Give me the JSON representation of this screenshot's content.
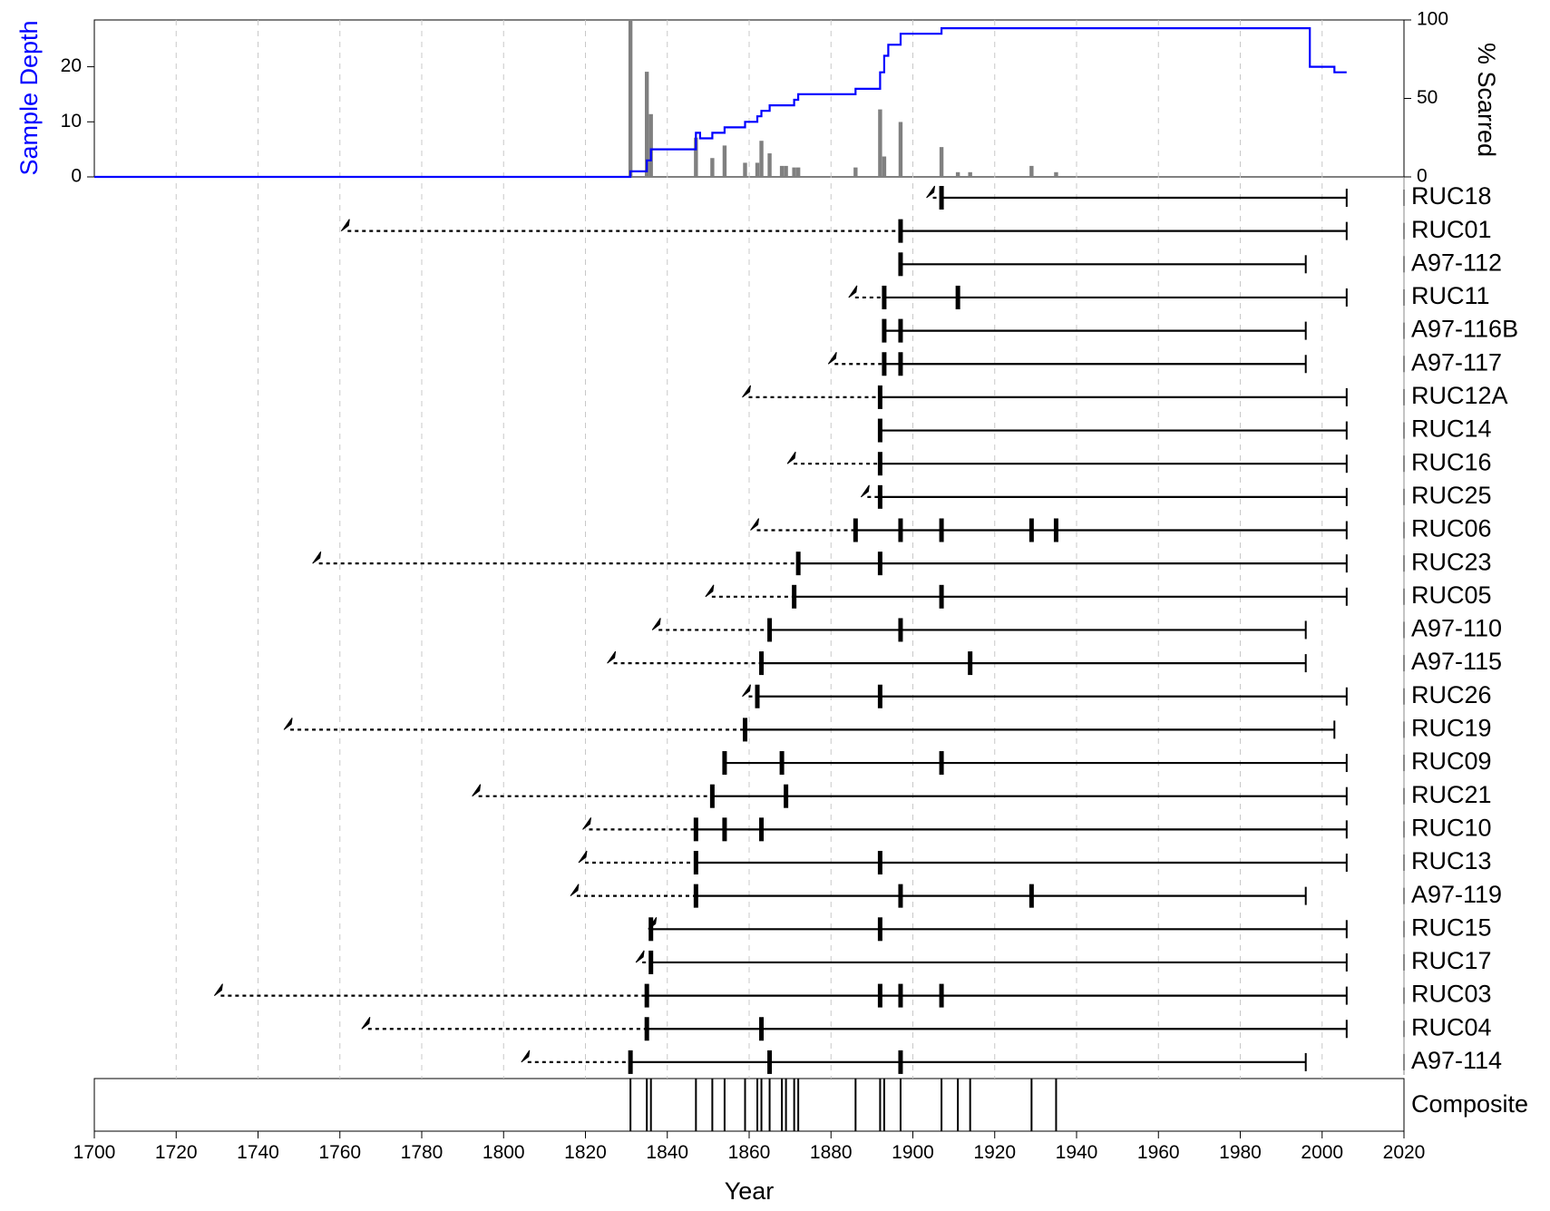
{
  "chart_data": {
    "type": "fire-history",
    "x_axis": {
      "label": "Year",
      "range": [
        1700,
        2020
      ],
      "ticks": [
        1700,
        1720,
        1740,
        1760,
        1780,
        1800,
        1820,
        1840,
        1860,
        1880,
        1900,
        1920,
        1940,
        1960,
        1980,
        2000,
        2020
      ]
    },
    "sample_depth_axis": {
      "label": "Sample Depth",
      "ticks": [
        0,
        10,
        20
      ],
      "range": [
        0,
        28.5
      ],
      "color": "#0000ff"
    },
    "percent_scarred_axis": {
      "label": "% Scarred",
      "ticks": [
        0,
        50,
        100
      ],
      "range": [
        0,
        100
      ],
      "bar_color": "#808080"
    },
    "sample_depth_series": [
      [
        1700,
        0
      ],
      [
        1831,
        0
      ],
      [
        1831,
        1
      ],
      [
        1835,
        1
      ],
      [
        1835,
        3
      ],
      [
        1836,
        3
      ],
      [
        1836,
        5
      ],
      [
        1847,
        5
      ],
      [
        1847,
        8
      ],
      [
        1848,
        8
      ],
      [
        1848,
        7
      ],
      [
        1851,
        7
      ],
      [
        1851,
        8
      ],
      [
        1854,
        8
      ],
      [
        1854,
        9
      ],
      [
        1859,
        9
      ],
      [
        1859,
        10
      ],
      [
        1862,
        10
      ],
      [
        1862,
        11
      ],
      [
        1863,
        11
      ],
      [
        1863,
        12
      ],
      [
        1865,
        12
      ],
      [
        1865,
        13
      ],
      [
        1871,
        13
      ],
      [
        1871,
        14
      ],
      [
        1872,
        14
      ],
      [
        1872,
        15
      ],
      [
        1886,
        15
      ],
      [
        1886,
        16
      ],
      [
        1892,
        16
      ],
      [
        1892,
        19
      ],
      [
        1893,
        19
      ],
      [
        1893,
        22
      ],
      [
        1894,
        22
      ],
      [
        1894,
        24
      ],
      [
        1897,
        24
      ],
      [
        1897,
        26
      ],
      [
        1907,
        26
      ],
      [
        1907,
        27
      ],
      [
        1997,
        27
      ],
      [
        1997,
        20
      ],
      [
        2003,
        20
      ],
      [
        2003,
        19
      ],
      [
        2006,
        19
      ]
    ],
    "percent_scarred": [
      {
        "year": 1831,
        "value": 100
      },
      {
        "year": 1835,
        "value": 67
      },
      {
        "year": 1836,
        "value": 40
      },
      {
        "year": 1847,
        "value": 25
      },
      {
        "year": 1851,
        "value": 12
      },
      {
        "year": 1854,
        "value": 20
      },
      {
        "year": 1859,
        "value": 9
      },
      {
        "year": 1862,
        "value": 9
      },
      {
        "year": 1863,
        "value": 23
      },
      {
        "year": 1865,
        "value": 15
      },
      {
        "year": 1868,
        "value": 7
      },
      {
        "year": 1869,
        "value": 7
      },
      {
        "year": 1871,
        "value": 6
      },
      {
        "year": 1872,
        "value": 6
      },
      {
        "year": 1886,
        "value": 6
      },
      {
        "year": 1892,
        "value": 43
      },
      {
        "year": 1893,
        "value": 13
      },
      {
        "year": 1897,
        "value": 35
      },
      {
        "year": 1907,
        "value": 19
      },
      {
        "year": 1911,
        "value": 3
      },
      {
        "year": 1914,
        "value": 3
      },
      {
        "year": 1929,
        "value": 7
      },
      {
        "year": 1935,
        "value": 3
      }
    ],
    "series": [
      {
        "name": "RUC18",
        "pith": 1904,
        "first": 1907,
        "last": 2006,
        "last_type": "bark",
        "events": [
          1907
        ]
      },
      {
        "name": "RUC01",
        "pith": 1761,
        "first": 1897,
        "last": 2006,
        "last_type": "bark",
        "events": [
          1897
        ]
      },
      {
        "name": "A97-112",
        "pith": null,
        "first": 1897,
        "last": 1996,
        "last_type": "bark",
        "events": [
          1897
        ]
      },
      {
        "name": "RUC11",
        "pith": 1885,
        "first": 1893,
        "last": 2006,
        "last_type": "bark",
        "events": [
          1893,
          1911
        ]
      },
      {
        "name": "A97-116B",
        "pith": null,
        "first": 1893,
        "last": 1996,
        "last_type": "bark",
        "events": [
          1893,
          1897
        ]
      },
      {
        "name": "A97-117",
        "pith": 1880,
        "first": 1893,
        "last": 1996,
        "last_type": "bark",
        "events": [
          1893,
          1897
        ]
      },
      {
        "name": "RUC12A",
        "pith": 1859,
        "first": 1892,
        "last": 2006,
        "last_type": "bark",
        "events": [
          1892
        ]
      },
      {
        "name": "RUC14",
        "pith": null,
        "first": 1892,
        "last": 2006,
        "last_type": "bark",
        "events": [
          1892
        ]
      },
      {
        "name": "RUC16",
        "pith": 1870,
        "first": 1892,
        "last": 2006,
        "last_type": "bark",
        "events": [
          1892
        ]
      },
      {
        "name": "RUC25",
        "pith": 1888,
        "first": 1892,
        "last": 2006,
        "last_type": "bark",
        "events": [
          1892
        ]
      },
      {
        "name": "RUC06",
        "pith": 1861,
        "first": 1886,
        "last": 2006,
        "last_type": "bark",
        "events": [
          1886,
          1897,
          1907,
          1929,
          1935
        ]
      },
      {
        "name": "RUC23",
        "pith": 1754,
        "first": 1872,
        "last": 2006,
        "last_type": "bark",
        "events": [
          1872,
          1892
        ]
      },
      {
        "name": "RUC05",
        "pith": 1850,
        "first": 1871,
        "last": 2006,
        "last_type": "bark",
        "events": [
          1871,
          1907
        ]
      },
      {
        "name": "A97-110",
        "pith": 1837,
        "first": 1865,
        "last": 1996,
        "last_type": "bark",
        "events": [
          1865,
          1897
        ]
      },
      {
        "name": "A97-115",
        "pith": 1826,
        "first": 1863,
        "last": 1996,
        "last_type": "bark",
        "events": [
          1863,
          1914
        ]
      },
      {
        "name": "RUC26",
        "pith": 1859,
        "first": 1862,
        "last": 2006,
        "last_type": "bark",
        "events": [
          1862,
          1892
        ]
      },
      {
        "name": "RUC19",
        "pith": 1747,
        "first": 1859,
        "last": 2003,
        "last_type": "bark",
        "events": [
          1859
        ]
      },
      {
        "name": "RUC09",
        "pith": null,
        "first": 1854,
        "last": 2006,
        "last_type": "bark",
        "events": [
          1854,
          1868,
          1907
        ]
      },
      {
        "name": "RUC21",
        "pith": 1793,
        "first": 1851,
        "last": 2006,
        "last_type": "bark",
        "events": [
          1851,
          1869
        ]
      },
      {
        "name": "RUC10",
        "pith": 1820,
        "first": 1847,
        "last": 2006,
        "last_type": "bark",
        "events": [
          1847,
          1854,
          1863
        ]
      },
      {
        "name": "RUC13",
        "pith": 1819,
        "first": 1847,
        "last": 2006,
        "last_type": "bark",
        "events": [
          1847,
          1892
        ]
      },
      {
        "name": "A97-119",
        "pith": 1817,
        "first": 1847,
        "last": 1996,
        "last_type": "bark",
        "events": [
          1847,
          1897,
          1929
        ]
      },
      {
        "name": "RUC15",
        "pith": 1836,
        "first": 1836,
        "last": 2006,
        "last_type": "bark",
        "events": [
          1836,
          1892
        ]
      },
      {
        "name": "RUC17",
        "pith": 1833,
        "first": 1836,
        "last": 2006,
        "last_type": "bark",
        "events": [
          1836
        ]
      },
      {
        "name": "RUC03",
        "pith": 1730,
        "first": 1835,
        "last": 2006,
        "last_type": "bark",
        "events": [
          1835,
          1892,
          1897,
          1907
        ]
      },
      {
        "name": "RUC04",
        "pith": 1766,
        "first": 1835,
        "last": 2006,
        "last_type": "bark",
        "events": [
          1835,
          1863
        ]
      },
      {
        "name": "A97-114",
        "pith": 1805,
        "first": 1831,
        "last": 1996,
        "last_type": "bark",
        "events": [
          1831,
          1865,
          1897
        ]
      }
    ],
    "composite": {
      "label": "Composite",
      "events": [
        1831,
        1835,
        1836,
        1847,
        1851,
        1854,
        1859,
        1862,
        1863,
        1865,
        1868,
        1869,
        1871,
        1872,
        1886,
        1892,
        1893,
        1897,
        1907,
        1911,
        1914,
        1929,
        1935
      ]
    },
    "grid": "vertical-dashed"
  }
}
